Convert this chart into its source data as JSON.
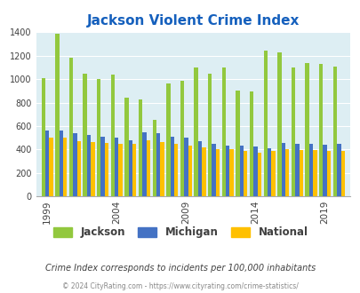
{
  "title": "Jackson Violent Crime Index",
  "subtitle": "Crime Index corresponds to incidents per 100,000 inhabitants",
  "footer": "© 2024 CityRating.com - https://www.cityrating.com/crime-statistics/",
  "years": [
    1999,
    2000,
    2001,
    2002,
    2003,
    2004,
    2005,
    2006,
    2007,
    2008,
    2009,
    2010,
    2011,
    2012,
    2013,
    2014,
    2015,
    2016,
    2017,
    2018,
    2019,
    2020
  ],
  "jackson": [
    1010,
    1390,
    1185,
    1050,
    1000,
    1035,
    840,
    830,
    655,
    965,
    985,
    1100,
    1050,
    1100,
    900,
    895,
    1240,
    1230,
    1100,
    1135,
    1130,
    1105
  ],
  "michigan": [
    560,
    560,
    540,
    525,
    510,
    500,
    480,
    550,
    535,
    510,
    500,
    470,
    450,
    430,
    430,
    425,
    410,
    455,
    450,
    445,
    440,
    445
  ],
  "national": [
    500,
    500,
    470,
    465,
    455,
    450,
    445,
    475,
    465,
    450,
    430,
    415,
    405,
    400,
    390,
    375,
    385,
    400,
    395,
    395,
    385,
    385
  ],
  "jackson_color": "#92c83e",
  "michigan_color": "#4472c4",
  "national_color": "#ffc000",
  "bg_color": "#ddeef3",
  "title_color": "#1560bd",
  "text_color": "#404040",
  "ylim": [
    0,
    1400
  ],
  "yticks": [
    0,
    200,
    400,
    600,
    800,
    1000,
    1200,
    1400
  ],
  "xtick_labels": [
    "1999",
    "2004",
    "2009",
    "2014",
    "2019"
  ],
  "xtick_years": [
    1999,
    2004,
    2009,
    2014,
    2019
  ]
}
